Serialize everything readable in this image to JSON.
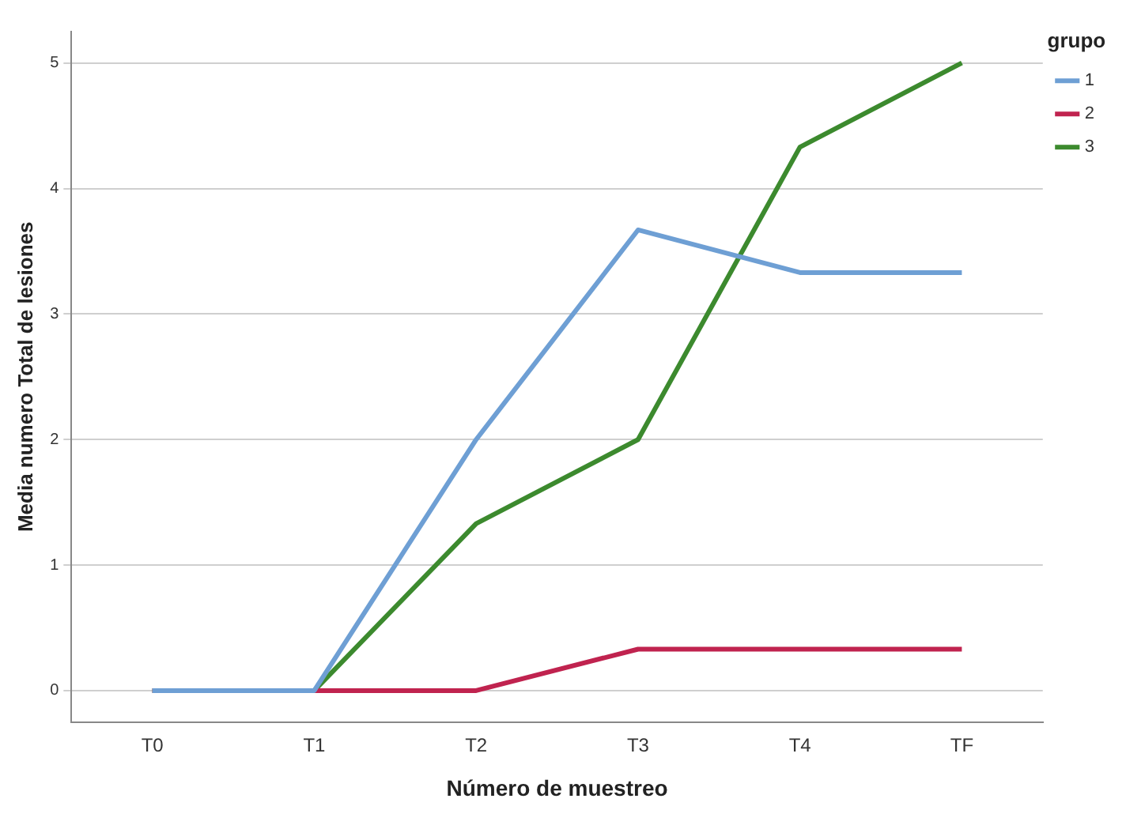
{
  "chart_data": {
    "type": "line",
    "xlabel": "Número de muestreo",
    "ylabel": "Media numero Total de lesiones",
    "legend_title": "grupo",
    "categories": [
      "T0",
      "T1",
      "T2",
      "T3",
      "T4",
      "TF"
    ],
    "series": [
      {
        "name": "1",
        "color": "#6e9fd4",
        "values": [
          0,
          0,
          2,
          3.67,
          3.33,
          3.33
        ]
      },
      {
        "name": "2",
        "color": "#c0234f",
        "values": [
          0,
          0,
          0,
          0.33,
          0.33,
          0.33
        ]
      },
      {
        "name": "3",
        "color": "#3c8a2e",
        "values": [
          0,
          0,
          1.33,
          2,
          4.33,
          5
        ]
      }
    ],
    "ylim": [
      -0.25,
      5.25
    ],
    "yticks": [
      0,
      1,
      2,
      3,
      4,
      5
    ],
    "grid": "y",
    "legend": "top right",
    "marker": "none",
    "line_style": "solid"
  }
}
